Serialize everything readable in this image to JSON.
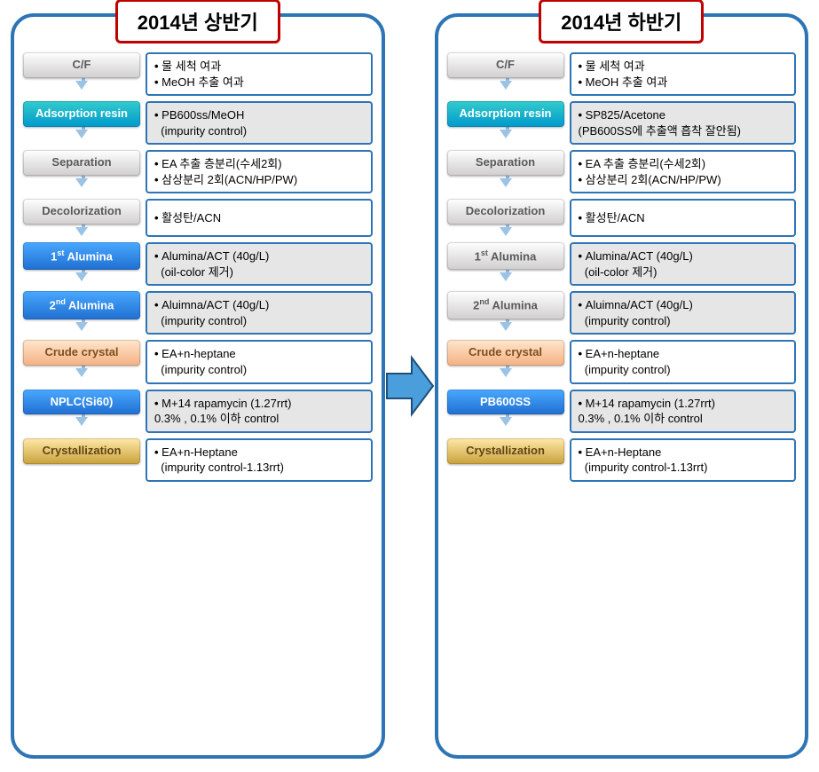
{
  "colors": {
    "panel_border": "#2e75b6",
    "title_border": "#c00000",
    "desc_border": "#2e75b6",
    "arrow_down": "#9cc3e6",
    "big_arrow_fill": "#2e75b6",
    "big_arrow_stroke": "#1f4e79",
    "shade_bg": "#e7e6e6",
    "chip_gray_top": "#ffffff",
    "chip_gray_bot": "#d0cece",
    "chip_gray_text": "#5a5a5a",
    "chip_teal_top": "#33cccc",
    "chip_teal_bot": "#0099cc",
    "chip_teal_text": "#ffffff",
    "chip_blue_top": "#4aa8ff",
    "chip_blue_bot": "#1f6fd1",
    "chip_blue_text": "#ffffff",
    "chip_peach_top": "#ffe6cc",
    "chip_peach_bot": "#f4b183",
    "chip_peach_text": "#7f4f1f",
    "chip_gold_top": "#ffe9a8",
    "chip_gold_bot": "#c9a13b",
    "chip_gold_text": "#604515"
  },
  "big_arrow": {
    "width": 56,
    "height": 84
  },
  "left": {
    "title": "2014년 상반기",
    "steps": [
      {
        "label": "C/F",
        "style": "gray",
        "desc": [
          "물 세척 여과",
          "MeOH 추출 여과"
        ],
        "shade": false
      },
      {
        "label": "Adsorption resin",
        "style": "teal",
        "desc": [
          "PB600ss/MeOH\n  (impurity control)"
        ],
        "shade": true
      },
      {
        "label": "Separation",
        "style": "gray",
        "desc": [
          "EA 추출 층분리(수세2회)",
          "삼상분리 2회(ACN/HP/PW)"
        ],
        "shade": false
      },
      {
        "label": "Decolorization",
        "style": "gray",
        "desc": [
          "활성탄/ACN"
        ],
        "shade": false
      },
      {
        "label": "1<sup>st</sup> Alumina",
        "style": "blue",
        "desc": [
          "Alumina/ACT (40g/L)\n  (oil-color 제거)"
        ],
        "shade": true
      },
      {
        "label": "2<sup>nd</sup> Alumina",
        "style": "blue",
        "desc": [
          "Aluimna/ACT (40g/L)\n  (impurity control)"
        ],
        "shade": true
      },
      {
        "label": "Crude crystal",
        "style": "peach",
        "desc": [
          "EA+n-heptane\n  (impurity control)"
        ],
        "shade": false
      },
      {
        "label": "NPLC(Si60)",
        "style": "blue",
        "desc": [
          "M+14 rapamycin (1.27rrt)\n0.3% , 0.1% 이하 control"
        ],
        "shade": true
      },
      {
        "label": "Crystallization",
        "style": "gold",
        "desc": [
          "EA+n-Heptane\n  (impurity control-1.13rrt)"
        ],
        "shade": false
      }
    ]
  },
  "right": {
    "title": "2014년 하반기",
    "steps": [
      {
        "label": "C/F",
        "style": "gray",
        "desc": [
          "물 세척 여과",
          "MeOH 추출 여과"
        ],
        "shade": false
      },
      {
        "label": "Adsorption resin",
        "style": "teal",
        "desc": [
          "SP825/Acetone\n(PB600SS에 추출액 흡착 잘안됨)"
        ],
        "shade": true
      },
      {
        "label": "Separation",
        "style": "gray",
        "desc": [
          "EA 추출 층분리(수세2회)",
          "삼상분리 2회(ACN/HP/PW)"
        ],
        "shade": false
      },
      {
        "label": "Decolorization",
        "style": "gray",
        "desc": [
          "활성탄/ACN"
        ],
        "shade": false
      },
      {
        "label": "1<sup>st</sup> Alumina",
        "style": "gray",
        "desc": [
          "Alumina/ACT (40g/L)\n  (oil-color 제거)"
        ],
        "shade": true
      },
      {
        "label": "2<sup>nd</sup> Alumina",
        "style": "gray",
        "desc": [
          "Aluimna/ACT (40g/L)\n  (impurity control)"
        ],
        "shade": true
      },
      {
        "label": "Crude crystal",
        "style": "peach",
        "desc": [
          "EA+n-heptane\n  (impurity control)"
        ],
        "shade": false
      },
      {
        "label": "PB600SS",
        "style": "blue",
        "desc": [
          "M+14 rapamycin (1.27rrt)\n0.3% , 0.1% 이하 control"
        ],
        "shade": true
      },
      {
        "label": "Crystallization",
        "style": "gold",
        "desc": [
          "EA+n-Heptane\n  (impurity control-1.13rrt)"
        ],
        "shade": false
      }
    ]
  }
}
